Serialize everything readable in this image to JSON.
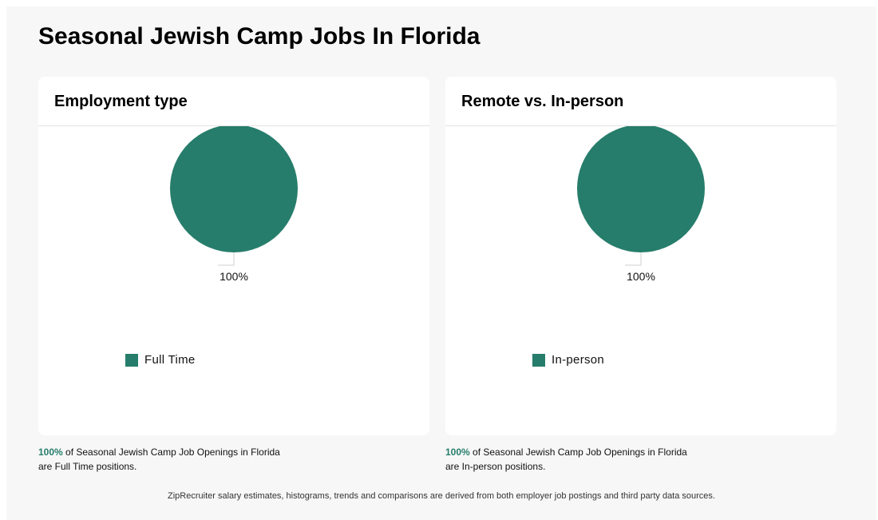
{
  "page": {
    "title": "Seasonal Jewish Camp Jobs In Florida",
    "footer": "ZipRecruiter salary estimates, histograms, trends and comparisons are derived from both employer job postings and third party data sources."
  },
  "colors": {
    "accent": "#267d6b"
  },
  "chart_data": [
    {
      "type": "pie",
      "title": "Employment type",
      "categories": [
        "Full Time"
      ],
      "values": [
        100
      ],
      "data_labels": [
        "100%"
      ],
      "legend": "bottom-left",
      "caption": {
        "percent": "100%",
        "line1": " of Seasonal Jewish Camp Job Openings in Florida",
        "line2": "are Full Time positions."
      }
    },
    {
      "type": "pie",
      "title": "Remote vs. In-person",
      "categories": [
        "In-person"
      ],
      "values": [
        100
      ],
      "data_labels": [
        "100%"
      ],
      "legend": "bottom-left",
      "caption": {
        "percent": "100%",
        "line1": " of Seasonal Jewish Camp Job Openings in Florida",
        "line2": "are In-person positions."
      }
    }
  ]
}
